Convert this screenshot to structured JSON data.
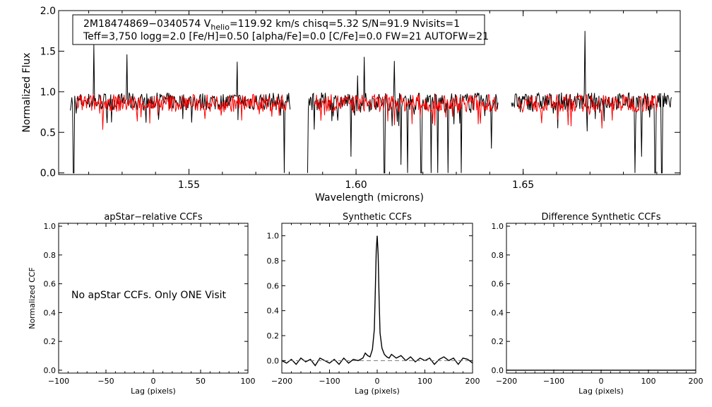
{
  "chart_data": [
    {
      "id": "spectrum",
      "type": "line",
      "xlabel": "Wavelength (microns)",
      "ylabel": "Normalized Flux",
      "xlim": [
        1.511,
        1.697
      ],
      "ylim": [
        -0.02,
        2.0
      ],
      "x_ticks": [
        "1.55",
        "1.60",
        "1.65"
      ],
      "x_tick_values": [
        1.55,
        1.6,
        1.65
      ],
      "y_ticks": [
        "0.0",
        "0.5",
        "1.0",
        "1.5",
        "2.0"
      ],
      "y_tick_values": [
        0.0,
        0.5,
        1.0,
        1.5,
        2.0
      ],
      "series": [
        {
          "color": "#000000",
          "segments": [
            [
              1.5145,
              1.5805
            ],
            [
              1.5855,
              1.6425
            ],
            [
              1.6465,
              1.6945
            ]
          ],
          "base": 0.88,
          "spikes": [
            [
              1.5155,
              0.0
            ],
            [
              1.5215,
              1.58
            ],
            [
              1.5315,
              1.46
            ],
            [
              1.5645,
              1.37
            ],
            [
              1.5785,
              0.0
            ],
            [
              1.5805,
              0.0
            ],
            [
              1.5855,
              0.0
            ],
            [
              1.5985,
              0.2
            ],
            [
              1.6005,
              1.2
            ],
            [
              1.6025,
              1.43
            ],
            [
              1.6085,
              0.0
            ],
            [
              1.6115,
              1.38
            ],
            [
              1.6135,
              0.1
            ],
            [
              1.6155,
              0.0
            ],
            [
              1.6195,
              0.0
            ],
            [
              1.6225,
              0.0
            ],
            [
              1.6245,
              0.0
            ],
            [
              1.6275,
              0.0
            ],
            [
              1.6315,
              0.0
            ],
            [
              1.6405,
              0.3
            ],
            [
              1.6685,
              1.75
            ],
            [
              1.6835,
              0.0
            ],
            [
              1.6855,
              0.2
            ],
            [
              1.6895,
              0.0
            ],
            [
              1.6915,
              0.0
            ]
          ]
        },
        {
          "color": "#ff0000",
          "segments": [
            [
              1.5165,
              1.5795
            ],
            [
              1.5875,
              1.6425
            ],
            [
              1.6485,
              1.6905
            ]
          ],
          "base": 0.86,
          "spikes": []
        }
      ],
      "info_line1_pre": "2M18474869−0340574  V",
      "info_line1_sub": "helio",
      "info_line1_post": "=119.92 km/s  chisq=5.32  S/N=91.9  Nvisits=1",
      "info_line2": "Teff=3,750 logg=2.0 [Fe/H]=0.50 [alpha/Fe]=0.0 [C/Fe]=0.0 FW=21 AUTOFW=21"
    },
    {
      "id": "apstar",
      "type": "line",
      "title": "apStar−relative CCFs",
      "xlabel": "Lag (pixels)",
      "ylabel": "Normalized CCF",
      "xlim": [
        -100,
        100
      ],
      "ylim": [
        -0.02,
        1.02
      ],
      "x_ticks": [
        "−100",
        "−50",
        "0",
        "50",
        "100"
      ],
      "x_tick_values": [
        -100,
        -50,
        0,
        50,
        100
      ],
      "y_ticks": [
        "0.0",
        "0.2",
        "0.4",
        "0.6",
        "0.8",
        "1.0"
      ],
      "y_tick_values": [
        0.0,
        0.2,
        0.4,
        0.6,
        0.8,
        1.0
      ],
      "note": "No apStar CCFs.  Only ONE Visit",
      "series": []
    },
    {
      "id": "synthetic",
      "type": "line",
      "title": "Synthetic CCFs",
      "xlabel": "Lag (pixels)",
      "xlim": [
        -200,
        200
      ],
      "ylim": [
        -0.1,
        1.1
      ],
      "x_ticks": [
        "−200",
        "−100",
        "0",
        "100",
        "200"
      ],
      "x_tick_values": [
        -200,
        -100,
        0,
        100,
        200
      ],
      "y_ticks": [
        "0.0",
        "0.2",
        "0.4",
        "0.6",
        "0.8",
        "1.0"
      ],
      "y_tick_values": [
        0.0,
        0.2,
        0.4,
        0.6,
        0.8,
        1.0
      ],
      "series": [
        {
          "color": "#000000",
          "x": [
            -200,
            -190,
            -180,
            -170,
            -160,
            -150,
            -140,
            -130,
            -120,
            -110,
            -100,
            -90,
            -80,
            -70,
            -60,
            -50,
            -40,
            -30,
            -25,
            -20,
            -15,
            -10,
            -6,
            -4,
            -2,
            0,
            2,
            4,
            6,
            10,
            15,
            20,
            25,
            30,
            40,
            50,
            60,
            70,
            80,
            90,
            100,
            110,
            120,
            130,
            140,
            150,
            160,
            170,
            180,
            190,
            200
          ],
          "y": [
            0.0,
            -0.02,
            0.01,
            -0.03,
            0.02,
            -0.01,
            0.01,
            -0.04,
            0.02,
            0.0,
            -0.02,
            0.01,
            -0.03,
            0.02,
            -0.02,
            0.01,
            0.0,
            0.02,
            0.06,
            0.04,
            0.03,
            0.09,
            0.25,
            0.55,
            0.88,
            1.0,
            0.85,
            0.5,
            0.22,
            0.1,
            0.05,
            0.03,
            0.02,
            0.05,
            0.02,
            0.04,
            0.0,
            0.03,
            -0.01,
            0.02,
            0.0,
            0.02,
            -0.03,
            0.01,
            0.03,
            0.0,
            0.02,
            -0.03,
            0.02,
            0.01,
            -0.02
          ]
        },
        {
          "color": "#777777",
          "dashed": true,
          "x": [
            -200,
            200
          ],
          "y": [
            0.0,
            0.0
          ]
        }
      ]
    },
    {
      "id": "difference",
      "type": "line",
      "title": "Difference Synthetic CCFs",
      "xlabel": "Lag (pixels)",
      "xlim": [
        -200,
        200
      ],
      "ylim": [
        -0.02,
        1.02
      ],
      "x_ticks": [
        "−200",
        "−100",
        "0",
        "100",
        "200"
      ],
      "x_tick_values": [
        -200,
        -100,
        0,
        100,
        200
      ],
      "y_ticks": [
        "0.0",
        "0.2",
        "0.4",
        "0.6",
        "0.8",
        "1.0"
      ],
      "y_tick_values": [
        0.0,
        0.2,
        0.4,
        0.6,
        0.8,
        1.0
      ],
      "series": [
        {
          "color": "#000000",
          "x": [
            -200,
            200
          ],
          "y": [
            0.0,
            0.0
          ]
        }
      ]
    }
  ]
}
